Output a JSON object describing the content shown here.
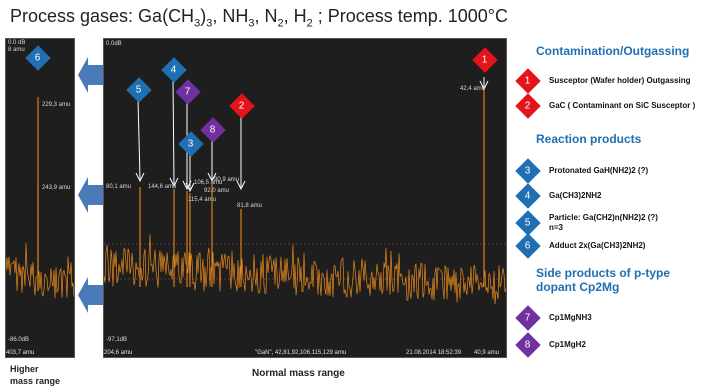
{
  "title": {
    "prefix": "Process gases: Ga(CH",
    "sub1": "3",
    "mid1": ")",
    "sub2": "3",
    "mid2": ", NH",
    "sub3": "3",
    "mid3": ", N",
    "sub4": "2",
    "mid4": ", H",
    "sub5": "2",
    "suffix": " ; Process temp. 1000°C"
  },
  "left_panel": {
    "top_label_1": "0.0 dB",
    "top_label_2": "8 amu",
    "bottom_db": "-86.0dB",
    "bottom_amu": "403,7 amu",
    "peak_labels": [
      "229,3 amu",
      "243,9 amu"
    ],
    "marker": "6",
    "caption_1": "Higher",
    "caption_2": "mass range"
  },
  "main_panel": {
    "top_db": "0.0dB",
    "bottom_db": "-97,1dB",
    "left_amu": "204,6 amu",
    "center_status": "\"GaN\", 42,81,92,106,115,129 amu",
    "timestamp": "21.08.2014 18:52:39",
    "right_amu": "40,9 amu",
    "caption": "Normal mass range",
    "peak_labels": [
      "42,4 amu",
      "80,1 amu",
      "144,6 amu",
      "115,4 amu",
      "106,5 amu",
      "92,0 amu",
      "90,9 amu",
      "81,8 amu"
    ],
    "markers": [
      "1",
      "5",
      "4",
      "7",
      "2",
      "8",
      "3"
    ]
  },
  "legend": {
    "contamination": {
      "heading": "Contamination/Outgassing",
      "items": [
        {
          "num": "1",
          "text": "Susceptor  (Wafer holder) Outgassing",
          "color": "#e3141b"
        },
        {
          "num": "2",
          "text": "GaC ( Contaminant on SiC Susceptor )",
          "color": "#e3141b"
        }
      ]
    },
    "reaction": {
      "heading": "Reaction products",
      "items": [
        {
          "num": "3",
          "text": "Protonated GaH(NH2)2 (?)",
          "color": "#1f6fb2"
        },
        {
          "num": "4",
          "text": "Ga(CH3)2NH2",
          "color": "#1f6fb2"
        },
        {
          "num": "5",
          "text": "Particle:  Ga(CH2)n(NH2)2 (?)",
          "text2": "n=3",
          "color": "#1f6fb2"
        },
        {
          "num": "6",
          "text": "Adduct 2x(Ga(CH3)2NH2)",
          "color": "#1f6fb2"
        }
      ]
    },
    "side": {
      "heading_1": "Side products of p-type",
      "heading_2": "dopant Cp2Mg",
      "items": [
        {
          "num": "7",
          "text": "Cp1MgNH3",
          "color": "#7030a0"
        },
        {
          "num": "8",
          "text": "Cp1MgH2",
          "color": "#7030a0"
        }
      ]
    }
  },
  "colors": {
    "spectrum": "#e8891c",
    "panel_bg": "#1e1e1e",
    "arrow": "#4a7ab8",
    "red": "#e3141b",
    "blue": "#1f6fb2",
    "purple": "#7030a0"
  }
}
